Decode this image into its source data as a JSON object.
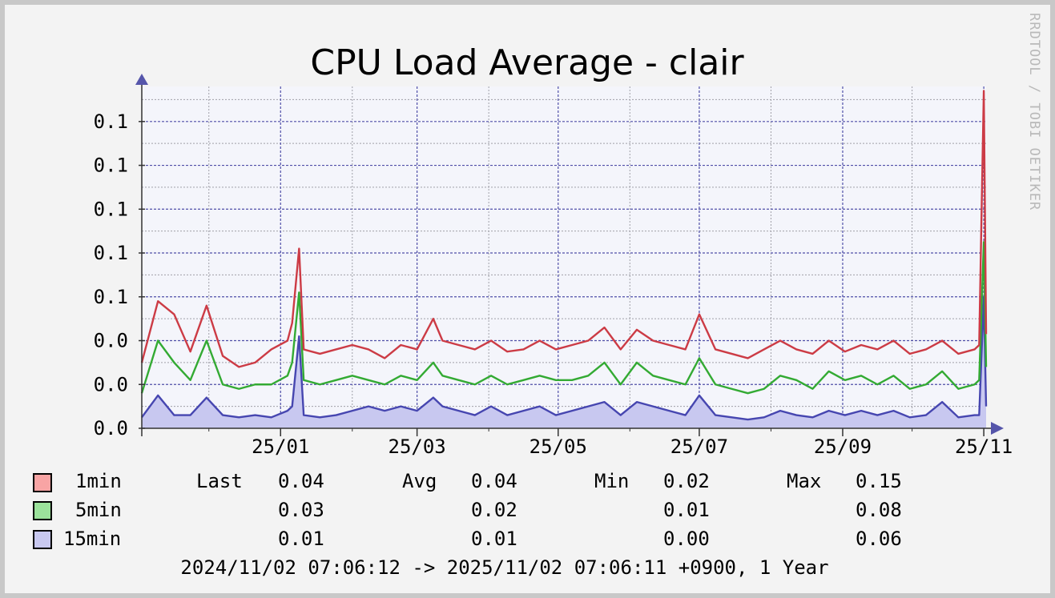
{
  "colors": {
    "background": "#f3f3f3",
    "plot_background": "#f4f5fb",
    "frame": "#c8c8c8",
    "major_grid": "#4f4fa8",
    "minor_grid": "#a0a0a8",
    "axis": "#333333",
    "arrow": "#5555aa",
    "text": "#000000",
    "watermark": "#b9b9b9",
    "series_1min_line": "#cc3b45",
    "series_5min_line": "#33aa33",
    "series_15min_line": "#4646b0",
    "series_15min_fill": "#c8c8f0",
    "legend_1min_swatch": "#f8a4a4",
    "legend_5min_swatch": "#9be29b",
    "legend_15min_swatch": "#c8c8f0"
  },
  "watermark": "RRDTOOL / TOBI OETIKER",
  "legend": {
    "rows": [
      {
        "name": "1min",
        "last_label": "Last",
        "last": "0.04",
        "avg_label": "Avg",
        "avg": "0.04",
        "min_label": "Min",
        "min": "0.02",
        "max_label": "Max",
        "max": "0.15"
      },
      {
        "name": "5min",
        "last": "0.03",
        "avg": "0.02",
        "min": "0.01",
        "max": "0.08"
      },
      {
        "name": "15min",
        "last": "0.01",
        "avg": "0.01",
        "min": "0.00",
        "max": "0.06"
      }
    ]
  },
  "footer": "2024/11/02 07:06:12 -> 2025/11/02 07:06:11 +0900, 1 Year",
  "chart_data": {
    "type": "line",
    "title": "CPU Load Average - clair",
    "xlabel": "",
    "ylabel": "",
    "x_range": [
      "2024-11-02",
      "2025-11-02"
    ],
    "x_ticks": [
      {
        "date": "2025-01-01",
        "label": "25/01"
      },
      {
        "date": "2025-03-01",
        "label": "25/03"
      },
      {
        "date": "2025-05-01",
        "label": "25/05"
      },
      {
        "date": "2025-07-01",
        "label": "25/07"
      },
      {
        "date": "2025-09-01",
        "label": "25/09"
      },
      {
        "date": "2025-11-01",
        "label": "25/11"
      }
    ],
    "ylim": [
      0,
      0.156
    ],
    "y_ticks": [
      {
        "value": 0.0,
        "label": "0.0"
      },
      {
        "value": 0.02,
        "label": "0.0"
      },
      {
        "value": 0.04,
        "label": "0.0"
      },
      {
        "value": 0.06,
        "label": "0.1"
      },
      {
        "value": 0.08,
        "label": "0.1"
      },
      {
        "value": 0.1,
        "label": "0.1"
      },
      {
        "value": 0.12,
        "label": "0.1"
      },
      {
        "value": 0.14,
        "label": "0.1"
      }
    ],
    "grid": true,
    "x": [
      "2024-11-02",
      "2024-11-09",
      "2024-11-16",
      "2024-11-23",
      "2024-11-30",
      "2024-12-07",
      "2024-12-14",
      "2024-12-21",
      "2024-12-28",
      "2025-01-04",
      "2025-01-06",
      "2025-01-09",
      "2025-01-11",
      "2025-01-18",
      "2025-01-25",
      "2025-02-01",
      "2025-02-08",
      "2025-02-15",
      "2025-02-22",
      "2025-03-01",
      "2025-03-08",
      "2025-03-12",
      "2025-03-19",
      "2025-03-26",
      "2025-04-02",
      "2025-04-09",
      "2025-04-16",
      "2025-04-23",
      "2025-04-30",
      "2025-05-07",
      "2025-05-14",
      "2025-05-21",
      "2025-05-28",
      "2025-06-04",
      "2025-06-11",
      "2025-06-18",
      "2025-06-25",
      "2025-07-01",
      "2025-07-08",
      "2025-07-15",
      "2025-07-22",
      "2025-07-29",
      "2025-08-05",
      "2025-08-12",
      "2025-08-19",
      "2025-08-26",
      "2025-09-02",
      "2025-09-09",
      "2025-09-16",
      "2025-09-23",
      "2025-09-30",
      "2025-10-07",
      "2025-10-14",
      "2025-10-21",
      "2025-10-28",
      "2025-10-30",
      "2025-11-01",
      "2025-11-02"
    ],
    "series": [
      {
        "name": "1min",
        "values": [
          0.03,
          0.058,
          0.052,
          0.035,
          0.056,
          0.033,
          0.028,
          0.03,
          0.036,
          0.04,
          0.048,
          0.082,
          0.036,
          0.034,
          0.036,
          0.038,
          0.036,
          0.032,
          0.038,
          0.036,
          0.05,
          0.04,
          0.038,
          0.036,
          0.04,
          0.035,
          0.036,
          0.04,
          0.036,
          0.038,
          0.04,
          0.046,
          0.036,
          0.045,
          0.04,
          0.038,
          0.036,
          0.052,
          0.036,
          0.034,
          0.032,
          0.036,
          0.04,
          0.036,
          0.034,
          0.04,
          0.035,
          0.038,
          0.036,
          0.04,
          0.034,
          0.036,
          0.04,
          0.034,
          0.036,
          0.038,
          0.154,
          0.043
        ]
      },
      {
        "name": "5min",
        "values": [
          0.016,
          0.04,
          0.03,
          0.022,
          0.04,
          0.02,
          0.018,
          0.02,
          0.02,
          0.024,
          0.03,
          0.062,
          0.022,
          0.02,
          0.022,
          0.024,
          0.022,
          0.02,
          0.024,
          0.022,
          0.03,
          0.024,
          0.022,
          0.02,
          0.024,
          0.02,
          0.022,
          0.024,
          0.022,
          0.022,
          0.024,
          0.03,
          0.02,
          0.03,
          0.024,
          0.022,
          0.02,
          0.032,
          0.02,
          0.018,
          0.016,
          0.018,
          0.024,
          0.022,
          0.018,
          0.026,
          0.022,
          0.024,
          0.02,
          0.024,
          0.018,
          0.02,
          0.026,
          0.018,
          0.02,
          0.022,
          0.085,
          0.028
        ]
      },
      {
        "name": "15min",
        "values": [
          0.005,
          0.015,
          0.006,
          0.006,
          0.014,
          0.006,
          0.005,
          0.006,
          0.005,
          0.008,
          0.01,
          0.042,
          0.006,
          0.005,
          0.006,
          0.008,
          0.01,
          0.008,
          0.01,
          0.008,
          0.014,
          0.01,
          0.008,
          0.006,
          0.01,
          0.006,
          0.008,
          0.01,
          0.006,
          0.008,
          0.01,
          0.012,
          0.006,
          0.012,
          0.01,
          0.008,
          0.006,
          0.015,
          0.006,
          0.005,
          0.004,
          0.005,
          0.008,
          0.006,
          0.005,
          0.008,
          0.006,
          0.008,
          0.006,
          0.008,
          0.005,
          0.006,
          0.012,
          0.005,
          0.006,
          0.006,
          0.06,
          0.01
        ]
      }
    ]
  }
}
